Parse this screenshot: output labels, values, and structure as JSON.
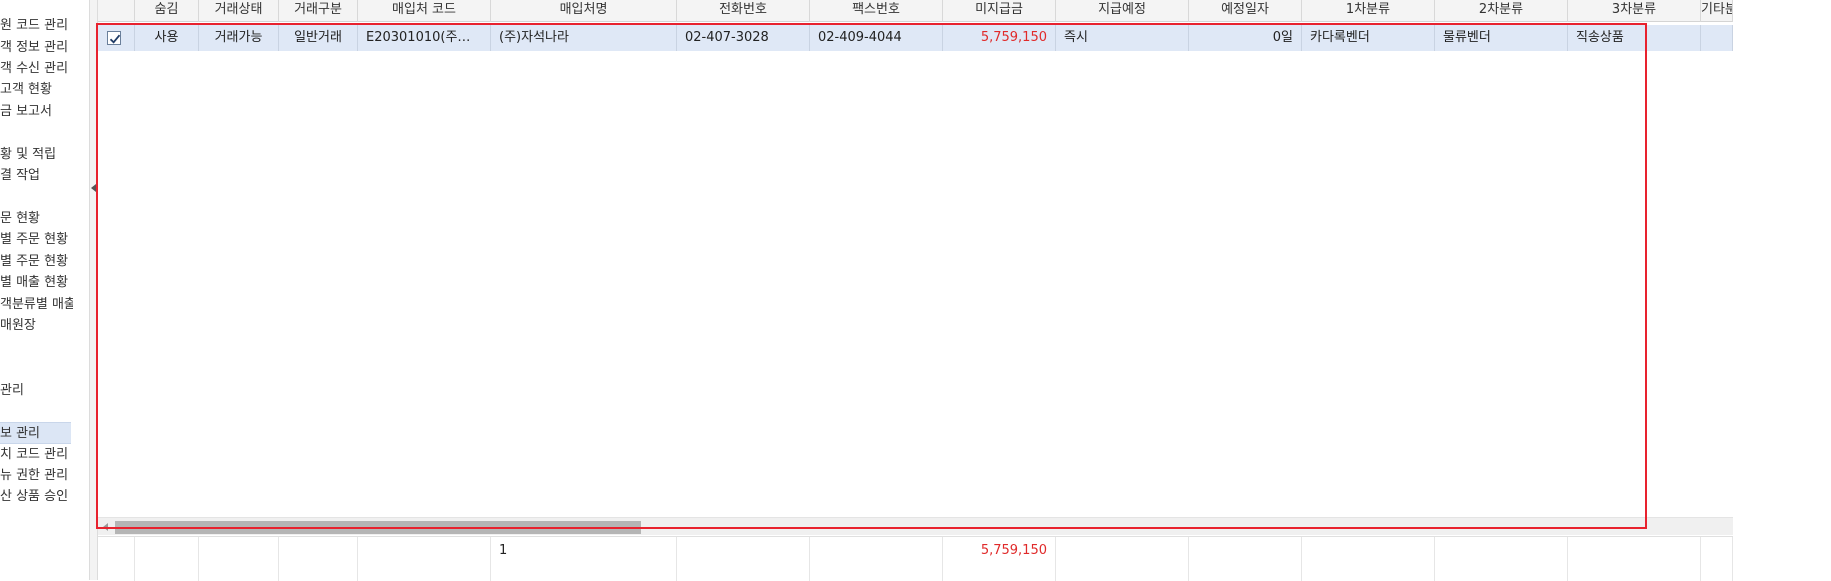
{
  "sidebar": {
    "items": [
      {
        "label": "원 코드 관리"
      },
      {
        "label": "객 정보 관리"
      },
      {
        "label": "객 수신 관리"
      },
      {
        "label": "고객 현황"
      },
      {
        "label": "금 보고서"
      },
      {
        "label": "황 및 적립"
      },
      {
        "label": "결 작업"
      },
      {
        "label": "문 현황"
      },
      {
        "label": "별 주문 현황"
      },
      {
        "label": "별 주문 현황"
      },
      {
        "label": "별 매출 현황"
      },
      {
        "label": "객분류별 매출"
      },
      {
        "label": "매원장"
      },
      {
        "label": "관리"
      },
      {
        "label": "보 관리"
      },
      {
        "label": "치 코드 관리"
      },
      {
        "label": "뉴 권한 관리"
      },
      {
        "label": "산 상품 승인"
      }
    ]
  },
  "grid": {
    "columns": [
      {
        "key": "check",
        "label": ""
      },
      {
        "key": "hide",
        "label": "숨김"
      },
      {
        "key": "status",
        "label": "거래상태"
      },
      {
        "key": "type",
        "label": "거래구분"
      },
      {
        "key": "code",
        "label": "매입처 코드"
      },
      {
        "key": "name",
        "label": "매입처명"
      },
      {
        "key": "phone",
        "label": "전화번호"
      },
      {
        "key": "fax",
        "label": "팩스번호"
      },
      {
        "key": "unpaid",
        "label": "미지급금"
      },
      {
        "key": "pay_plan",
        "label": "지급예정"
      },
      {
        "key": "due",
        "label": "예정일자"
      },
      {
        "key": "cat1",
        "label": "1차분류"
      },
      {
        "key": "cat2",
        "label": "2차분류"
      },
      {
        "key": "cat3",
        "label": "3차분류"
      },
      {
        "key": "etc",
        "label": "기타분류"
      }
    ],
    "rows": [
      {
        "checked": true,
        "hide": "사용",
        "status": "거래가능",
        "type": "일반거래",
        "code": "E20301010(주…",
        "name": "(주)자석나라",
        "phone": "02-407-3028",
        "fax": "02-409-4044",
        "unpaid": "5,759,150",
        "pay_plan": "즉시",
        "due": "0일",
        "cat1": "카다록벤더",
        "cat2": "물류벤더",
        "cat3": "직송상품",
        "etc": ""
      }
    ],
    "footer": {
      "count": "1",
      "unpaid_total": "5,759,150"
    },
    "hscroll_position": 0.0
  },
  "colors": {
    "selection_border": "#e8222e",
    "selected_row": "#dfe8f6",
    "negative_amount": "#e02a2a"
  }
}
